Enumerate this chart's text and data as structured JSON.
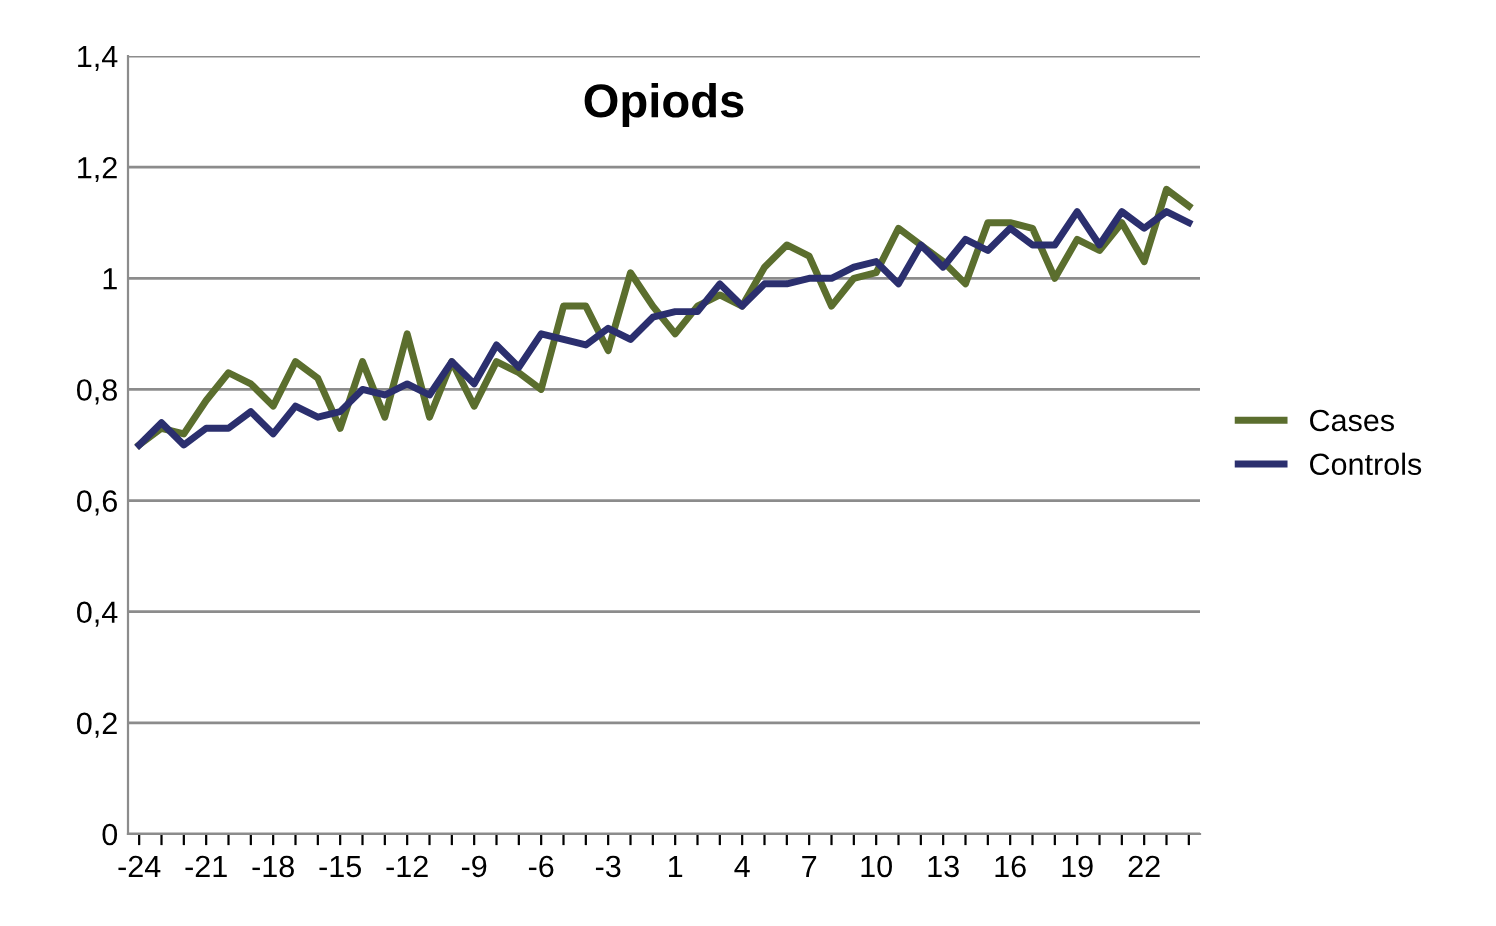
{
  "chart_data": {
    "type": "line",
    "title": "Opiods",
    "categories": [
      "-24",
      null,
      null,
      "-21",
      null,
      null,
      "-18",
      null,
      null,
      "-15",
      null,
      null,
      "-12",
      null,
      null,
      "-9",
      null,
      null,
      "-6",
      null,
      null,
      "-3",
      null,
      null,
      "1",
      null,
      null,
      "4",
      null,
      null,
      "7",
      null,
      null,
      "10",
      null,
      null,
      "13",
      null,
      null,
      "16",
      null,
      null,
      "19",
      null,
      null,
      "22",
      null,
      null
    ],
    "series": [
      {
        "name": "Cases",
        "color": "#5b6e2e",
        "values": [
          0.7,
          0.73,
          0.72,
          0.78,
          0.83,
          0.81,
          0.77,
          0.85,
          0.82,
          0.73,
          0.85,
          0.75,
          0.9,
          0.75,
          0.85,
          0.77,
          0.85,
          0.83,
          0.8,
          0.95,
          0.95,
          0.87,
          1.01,
          0.95,
          0.9,
          0.95,
          0.97,
          0.95,
          1.02,
          1.06,
          1.04,
          0.95,
          1.0,
          1.01,
          1.09,
          1.06,
          1.03,
          0.99,
          1.1,
          1.1,
          1.09,
          1.0,
          1.07,
          1.05,
          1.1,
          1.03,
          1.16,
          1.13
        ]
      },
      {
        "name": "Controls",
        "color": "#2b2f6e",
        "values": [
          0.7,
          0.74,
          0.7,
          0.73,
          0.73,
          0.76,
          0.72,
          0.77,
          0.75,
          0.76,
          0.8,
          0.79,
          0.81,
          0.79,
          0.85,
          0.81,
          0.88,
          0.84,
          0.9,
          0.89,
          0.88,
          0.91,
          0.89,
          0.93,
          0.94,
          0.94,
          0.99,
          0.95,
          0.99,
          0.99,
          1.0,
          1.0,
          1.02,
          1.03,
          0.99,
          1.06,
          1.02,
          1.07,
          1.05,
          1.09,
          1.06,
          1.06,
          1.12,
          1.06,
          1.12,
          1.09,
          1.12,
          1.1
        ]
      }
    ],
    "ylim": [
      0,
      1.4
    ],
    "yticks": [
      0,
      {
        "value": 0.2,
        "label": "0,2"
      },
      {
        "value": 0.4,
        "label": "0,4"
      },
      {
        "value": 0.6,
        "label": "0,6"
      },
      {
        "value": 0.8,
        "label": "0,8"
      },
      1,
      {
        "value": 1.2,
        "label": "1,2"
      },
      {
        "value": 1.4,
        "label": "1,4"
      }
    ],
    "grid": "y",
    "legend": "right",
    "marker": "none",
    "line_style": "solid"
  }
}
